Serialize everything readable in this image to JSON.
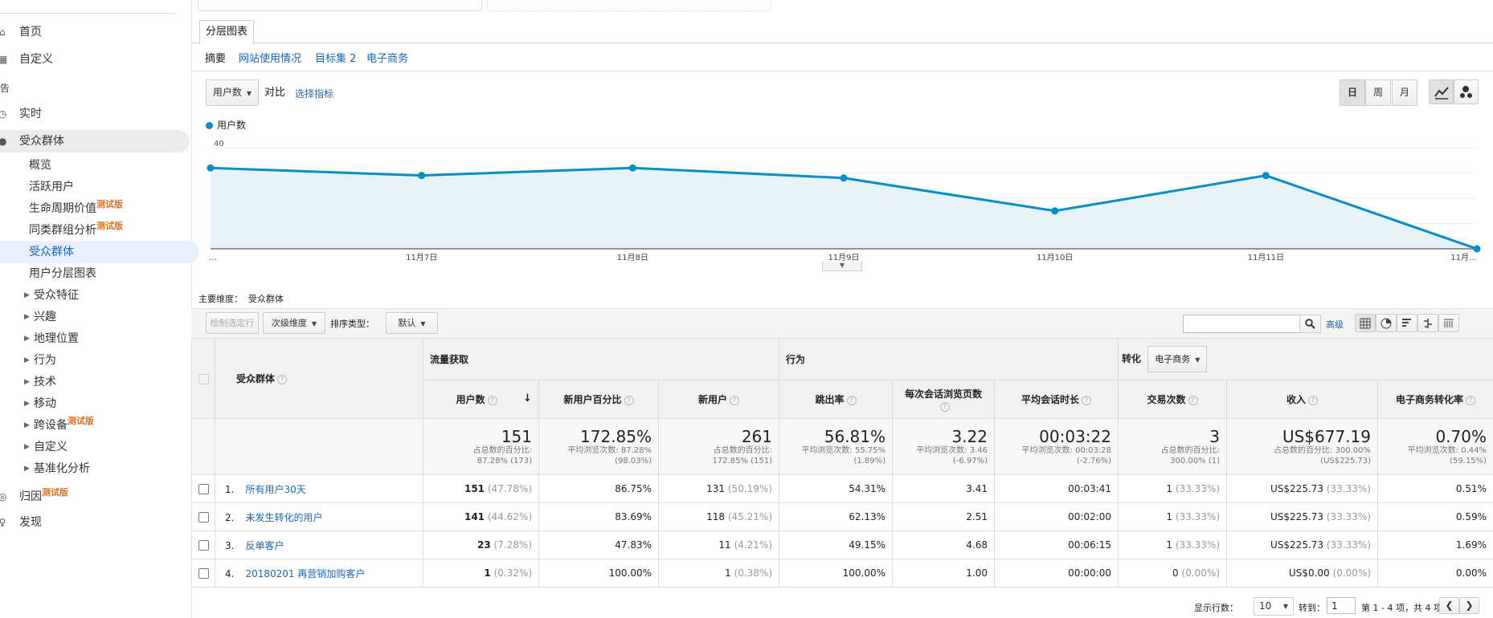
{
  "sidebar": {
    "items": [
      {
        "label": "首页",
        "type": "top",
        "icon": "home-icon"
      },
      {
        "label": "自定义",
        "type": "top",
        "icon": "dashboard-icon"
      },
      {
        "label": "告",
        "type": "section"
      },
      {
        "label": "实时",
        "type": "top",
        "icon": "clock-icon"
      },
      {
        "label": "受众群体",
        "type": "top",
        "icon": "person-icon",
        "active_parent": true
      },
      {
        "label": "概览",
        "type": "sub"
      },
      {
        "label": "活跃用户",
        "type": "sub"
      },
      {
        "label": "生命周期价值",
        "type": "sub",
        "badge": "测试版"
      },
      {
        "label": "同类群组分析",
        "type": "sub",
        "badge": "测试版"
      },
      {
        "label": "受众群体",
        "type": "sub",
        "active": true
      },
      {
        "label": "用户分层图表",
        "type": "sub"
      },
      {
        "label": "受众特征",
        "type": "sub2"
      },
      {
        "label": "兴趣",
        "type": "sub2"
      },
      {
        "label": "地理位置",
        "type": "sub2"
      },
      {
        "label": "行为",
        "type": "sub2"
      },
      {
        "label": "技术",
        "type": "sub2"
      },
      {
        "label": "移动",
        "type": "sub2"
      },
      {
        "label": "跨设备",
        "type": "sub2",
        "badge": "测试版"
      },
      {
        "label": "自定义",
        "type": "sub2"
      },
      {
        "label": "基准化分析",
        "type": "sub2"
      },
      {
        "label": "归因",
        "type": "top",
        "icon": "attribution-icon",
        "badge": "测试版"
      },
      {
        "label": "发现",
        "type": "top",
        "icon": "lightbulb-icon"
      }
    ]
  },
  "explorer": {
    "tab": "分层图表",
    "subtabs": [
      "摘要",
      "网站使用情况",
      "目标集 2",
      "电子商务"
    ],
    "metric_select": "用户数",
    "compare_label": "对比",
    "select_metric_link": "选择指标",
    "period_buttons": [
      "日",
      "周",
      "月"
    ],
    "legend_label": "用户数"
  },
  "chart_data": {
    "type": "area",
    "series": [
      {
        "name": "用户数",
        "values": [
          32,
          29,
          32,
          28,
          15,
          29,
          0
        ]
      }
    ],
    "categories": [
      "…",
      "11月7日",
      "11月8日",
      "11月9日",
      "11月10日",
      "11月11日",
      "11月…"
    ],
    "y_ticks": [
      "40",
      "20"
    ],
    "ylim": [
      0,
      40
    ],
    "color": "#058dc7",
    "fill": "#e5f3f9"
  },
  "table_toolbar": {
    "primary_dim_label": "主要维度：",
    "primary_dim_value": "受众群体",
    "plot_rows": "绘制选定行",
    "secondary_dim": "次级维度",
    "sort_type_label": "排序类型：",
    "sort_type_value": "默认",
    "advanced_link": "高级"
  },
  "table": {
    "dim_header": "受众群体",
    "groups": {
      "acq": "流量获取",
      "beh": "行为",
      "conv": "转化",
      "conv_select": "电子商务"
    },
    "columns": [
      "用户数",
      "新用户百分比",
      "新用户",
      "跳出率",
      "每次会话浏览页数",
      "平均会话时长",
      "交易次数",
      "收入",
      "电子商务转化率"
    ],
    "totals": [
      {
        "big": "151",
        "small": "占总数的百分比:",
        "small2": "87.28% (173)"
      },
      {
        "big": "172.85%",
        "small": "平均浏览次数: 87.28%",
        "small2": "(98.03%)"
      },
      {
        "big": "261",
        "small": "占总数的百分比:",
        "small2": "172.85% (151)"
      },
      {
        "big": "56.81%",
        "small": "平均浏览次数: 55.75%",
        "small2": "(1.89%)"
      },
      {
        "big": "3.22",
        "small": "平均浏览次数: 3.46",
        "small2": "(-6.97%)"
      },
      {
        "big": "00:03:22",
        "small": "平均浏览次数: 00:03:28",
        "small2": "(-2.76%)"
      },
      {
        "big": "3",
        "small": "占总数的百分比:",
        "small2": "300.00% (1)"
      },
      {
        "big": "US$677.19",
        "small": "占总数的百分比: 300.00%",
        "small2": "(US$225.73)"
      },
      {
        "big": "0.70%",
        "small": "平均浏览次数: 0.44%",
        "small2": "(59.15%)"
      }
    ],
    "rows": [
      {
        "idx": "1.",
        "name": "所有用户30天",
        "users": "151",
        "users_pct": "(47.78%)",
        "new_pct": "86.75%",
        "new_users": "131",
        "new_users_pct": "(50.19%)",
        "bounce": "54.31%",
        "ppv": "3.41",
        "dur": "00:03:41",
        "tx": "1",
        "tx_pct": "(33.33%)",
        "rev": "US$225.73",
        "rev_pct": "(33.33%)",
        "conv": "0.51%"
      },
      {
        "idx": "2.",
        "name": "未发生转化的用户",
        "users": "141",
        "users_pct": "(44.62%)",
        "new_pct": "83.69%",
        "new_users": "118",
        "new_users_pct": "(45.21%)",
        "bounce": "62.13%",
        "ppv": "2.51",
        "dur": "00:02:00",
        "tx": "1",
        "tx_pct": "(33.33%)",
        "rev": "US$225.73",
        "rev_pct": "(33.33%)",
        "conv": "0.59%"
      },
      {
        "idx": "3.",
        "name": "反单客户",
        "users": "23",
        "users_pct": "(7.28%)",
        "new_pct": "47.83%",
        "new_users": "11",
        "new_users_pct": "(4.21%)",
        "bounce": "49.15%",
        "ppv": "4.68",
        "dur": "00:06:15",
        "tx": "1",
        "tx_pct": "(33.33%)",
        "rev": "US$225.73",
        "rev_pct": "(33.33%)",
        "conv": "1.69%"
      },
      {
        "idx": "4.",
        "name": "20180201 再营销加购客户",
        "users": "1",
        "users_pct": "(0.32%)",
        "new_pct": "100.00%",
        "new_users": "1",
        "new_users_pct": "(0.38%)",
        "bounce": "100.00%",
        "ppv": "1.00",
        "dur": "00:00:00",
        "tx": "0",
        "tx_pct": "(0.00%)",
        "rev": "US$0.00",
        "rev_pct": "(0.00%)",
        "conv": "0.00%"
      }
    ]
  },
  "pagination": {
    "rows_label": "显示行数：",
    "rows_value": "10",
    "goto_label": "转到：",
    "goto_value": "1",
    "range_text": "第 1 - 4 项，共 4 项"
  }
}
